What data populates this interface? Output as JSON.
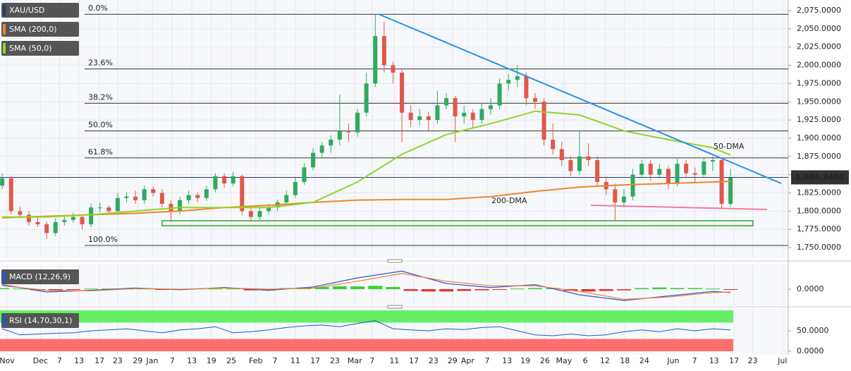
{
  "chart_data": [
    {
      "type": "candlestick",
      "title": "XAU/USD",
      "up_color": "#2faa5f",
      "down_color": "#e0584a",
      "xlim": [
        -0.5,
        177
      ],
      "ylim": [
        1736.5,
        2084.7
      ],
      "yticks": [
        {
          "value": 1750,
          "label": "1,750.0000"
        },
        {
          "value": 1775,
          "label": "1,775.0000"
        },
        {
          "value": 1800,
          "label": "1,800.0000"
        },
        {
          "value": 1825,
          "label": "1,825.0000"
        },
        {
          "value": 1850,
          "label": "1,850.0000"
        },
        {
          "value": 1875,
          "label": "1,875.0000"
        },
        {
          "value": 1900,
          "label": "1,900.0000"
        },
        {
          "value": 1925,
          "label": "1,925.0000"
        },
        {
          "value": 1950,
          "label": "1,950.0000"
        },
        {
          "value": 1975,
          "label": "1,975.0000"
        },
        {
          "value": 2000,
          "label": "2,000.0000"
        },
        {
          "value": 2025,
          "label": "2,025.0000"
        },
        {
          "value": 2050,
          "label": "2,050.0000"
        },
        {
          "value": 2075,
          "label": "2,075.0000"
        }
      ],
      "xticks": [
        {
          "value": 1.1,
          "label": "Nov"
        },
        {
          "value": 8.6,
          "label": "Dec"
        },
        {
          "value": 12.9,
          "label": "7"
        },
        {
          "value": 17.3,
          "label": "13"
        },
        {
          "value": 21.9,
          "label": "17"
        },
        {
          "value": 26,
          "label": "23"
        },
        {
          "value": 30.5,
          "label": "29"
        },
        {
          "value": 33.8,
          "label": "Jan"
        },
        {
          "value": 38.3,
          "label": "7"
        },
        {
          "value": 42.7,
          "label": "13"
        },
        {
          "value": 47.1,
          "label": "19"
        },
        {
          "value": 51.6,
          "label": "25"
        },
        {
          "value": 57.1,
          "label": "Feb"
        },
        {
          "value": 61.4,
          "label": "7"
        },
        {
          "value": 66,
          "label": "11"
        },
        {
          "value": 70.5,
          "label": "17"
        },
        {
          "value": 74.9,
          "label": "23"
        },
        {
          "value": 79.4,
          "label": "Mar"
        },
        {
          "value": 83.3,
          "label": "7"
        },
        {
          "value": 88.3,
          "label": "11"
        },
        {
          "value": 92.7,
          "label": "17"
        },
        {
          "value": 97.1,
          "label": "23"
        },
        {
          "value": 101.4,
          "label": "29"
        },
        {
          "value": 104.8,
          "label": "Apr"
        },
        {
          "value": 109.2,
          "label": "7"
        },
        {
          "value": 113.7,
          "label": "13"
        },
        {
          "value": 117.8,
          "label": "19"
        },
        {
          "value": 122.2,
          "label": "26"
        },
        {
          "value": 126.5,
          "label": "May"
        },
        {
          "value": 131.3,
          "label": "6"
        },
        {
          "value": 135.7,
          "label": "12"
        },
        {
          "value": 140.2,
          "label": "18"
        },
        {
          "value": 144.6,
          "label": "24"
        },
        {
          "value": 151.1,
          "label": "Jun"
        },
        {
          "value": 155.9,
          "label": "7"
        },
        {
          "value": 160.3,
          "label": "13"
        },
        {
          "value": 164.8,
          "label": "17"
        },
        {
          "value": 169,
          "label": "23"
        },
        {
          "value": 175.7,
          "label": "Jul"
        }
      ],
      "x": [
        0,
        2,
        4,
        6,
        8,
        10,
        12,
        14,
        16,
        18,
        20,
        22,
        24,
        26,
        28,
        30,
        32,
        34,
        36,
        38,
        40,
        42,
        44,
        46,
        48,
        50,
        52,
        54,
        56,
        58,
        60,
        62,
        64,
        66,
        68,
        70,
        72,
        74,
        76,
        78,
        80,
        82,
        84,
        86,
        88,
        90,
        92,
        94,
        96,
        98,
        100,
        102,
        104,
        106,
        108,
        110,
        112,
        114,
        116,
        118,
        120,
        122,
        124,
        126,
        128,
        130,
        132,
        134,
        136,
        138,
        140,
        142,
        144,
        146,
        148,
        150,
        152,
        154,
        156,
        158,
        160,
        162,
        164
      ],
      "candles": [
        [
          1835,
          1852,
          1830,
          1845
        ],
        [
          1845,
          1848,
          1796,
          1800
        ],
        [
          1800,
          1806,
          1790,
          1795
        ],
        [
          1795,
          1800,
          1780,
          1785
        ],
        [
          1785,
          1792,
          1778,
          1782
        ],
        [
          1782,
          1786,
          1762,
          1770
        ],
        [
          1770,
          1790,
          1766,
          1785
        ],
        [
          1785,
          1795,
          1780,
          1788
        ],
        [
          1788,
          1798,
          1784,
          1792
        ],
        [
          1792,
          1796,
          1775,
          1782
        ],
        [
          1782,
          1810,
          1778,
          1805
        ],
        [
          1805,
          1812,
          1798,
          1805
        ],
        [
          1805,
          1808,
          1795,
          1800
        ],
        [
          1800,
          1825,
          1796,
          1818
        ],
        [
          1818,
          1826,
          1812,
          1820
        ],
        [
          1820,
          1828,
          1810,
          1815
        ],
        [
          1815,
          1835,
          1810,
          1830
        ],
        [
          1830,
          1834,
          1820,
          1825
        ],
        [
          1825,
          1830,
          1805,
          1810
        ],
        [
          1810,
          1815,
          1785,
          1800
        ],
        [
          1800,
          1820,
          1795,
          1815
        ],
        [
          1815,
          1828,
          1810,
          1822
        ],
        [
          1822,
          1826,
          1812,
          1818
        ],
        [
          1818,
          1835,
          1814,
          1830
        ],
        [
          1830,
          1852,
          1826,
          1848
        ],
        [
          1848,
          1852,
          1832,
          1838
        ],
        [
          1838,
          1854,
          1834,
          1848
        ],
        [
          1848,
          1850,
          1795,
          1800
        ],
        [
          1800,
          1805,
          1786,
          1792
        ],
        [
          1792,
          1806,
          1788,
          1800
        ],
        [
          1800,
          1810,
          1795,
          1805
        ],
        [
          1805,
          1816,
          1800,
          1812
        ],
        [
          1812,
          1828,
          1808,
          1822
        ],
        [
          1822,
          1846,
          1818,
          1840
        ],
        [
          1840,
          1866,
          1836,
          1860
        ],
        [
          1860,
          1886,
          1856,
          1880
        ],
        [
          1880,
          1895,
          1874,
          1890
        ],
        [
          1890,
          1904,
          1880,
          1898
        ],
        [
          1898,
          1960,
          1890,
          1910
        ],
        [
          1910,
          1920,
          1895,
          1908
        ],
        [
          1908,
          1940,
          1902,
          1935
        ],
        [
          1935,
          1990,
          1930,
          1975
        ],
        [
          1975,
          2070,
          1970,
          2040
        ],
        [
          2040,
          2060,
          1990,
          2000
        ],
        [
          2000,
          2005,
          1975,
          1990
        ],
        [
          1990,
          1995,
          1895,
          1935
        ],
        [
          1935,
          1945,
          1915,
          1925
        ],
        [
          1925,
          1940,
          1918,
          1930
        ],
        [
          1930,
          1936,
          1910,
          1925
        ],
        [
          1925,
          1965,
          1920,
          1945
        ],
        [
          1945,
          1962,
          1940,
          1955
        ],
        [
          1955,
          1958,
          1895,
          1930
        ],
        [
          1930,
          1945,
          1920,
          1935
        ],
        [
          1935,
          1940,
          1915,
          1925
        ],
        [
          1925,
          1948,
          1920,
          1940
        ],
        [
          1940,
          1955,
          1932,
          1945
        ],
        [
          1945,
          1982,
          1940,
          1975
        ],
        [
          1975,
          1988,
          1965,
          1980
        ],
        [
          1980,
          2000,
          1970,
          1985
        ],
        [
          1985,
          1990,
          1945,
          1955
        ],
        [
          1955,
          1962,
          1940,
          1950
        ],
        [
          1950,
          1955,
          1890,
          1898
        ],
        [
          1898,
          1920,
          1878,
          1885
        ],
        [
          1885,
          1895,
          1862,
          1870
        ],
        [
          1870,
          1875,
          1848,
          1855
        ],
        [
          1855,
          1910,
          1850,
          1875
        ],
        [
          1875,
          1893,
          1862,
          1870
        ],
        [
          1870,
          1875,
          1835,
          1840
        ],
        [
          1840,
          1848,
          1822,
          1830
        ],
        [
          1830,
          1838,
          1787,
          1812
        ],
        [
          1812,
          1830,
          1805,
          1820
        ],
        [
          1820,
          1858,
          1815,
          1850
        ],
        [
          1850,
          1870,
          1845,
          1865
        ],
        [
          1865,
          1870,
          1842,
          1850
        ],
        [
          1850,
          1865,
          1845,
          1858
        ],
        [
          1858,
          1862,
          1830,
          1838
        ],
        [
          1838,
          1872,
          1834,
          1865
        ],
        [
          1865,
          1870,
          1845,
          1852
        ],
        [
          1852,
          1860,
          1840,
          1850
        ],
        [
          1850,
          1874,
          1846,
          1868
        ],
        [
          1868,
          1875,
          1855,
          1870
        ],
        [
          1870,
          1872,
          1805,
          1810
        ],
        [
          1810,
          1858,
          1806,
          1846
        ]
      ],
      "series": [
        {
          "name": "SMA (200,0)",
          "annotation": "200-DMA",
          "color": "#f0852d",
          "x": [
            0,
            10,
            20,
            30,
            40,
            50,
            60,
            70,
            80,
            90,
            100,
            110,
            120,
            130,
            140,
            150,
            160,
            164
          ],
          "values": [
            1791,
            1793,
            1795,
            1797,
            1800,
            1805,
            1808,
            1812,
            1815,
            1816,
            1816,
            1820,
            1827,
            1833,
            1836,
            1838,
            1840,
            1841
          ]
        },
        {
          "name": "SMA (50,0)",
          "annotation": "50-DMA",
          "color": "#8ed62a",
          "x": [
            0,
            10,
            20,
            30,
            40,
            50,
            60,
            70,
            80,
            90,
            100,
            110,
            120,
            130,
            140,
            150,
            160,
            164
          ],
          "values": [
            1792,
            1792,
            1795,
            1800,
            1805,
            1805,
            1805,
            1812,
            1840,
            1878,
            1905,
            1920,
            1937,
            1932,
            1910,
            1898,
            1887,
            1877
          ]
        }
      ],
      "fib_levels": [
        {
          "label": "0.0%",
          "value": 2070
        },
        {
          "label": "23.6%",
          "value": 1995
        },
        {
          "label": "38.2%",
          "value": 1948
        },
        {
          "label": "50.0%",
          "value": 1910
        },
        {
          "label": "61.8%",
          "value": 1873
        },
        {
          "label": "100.0%",
          "value": 1753
        }
      ],
      "last_price": {
        "value": 1846.34,
        "label": "1,846.3400"
      }
    },
    {
      "type": "macd",
      "title": "MACD (12,26,9)",
      "xlim": [
        -0.5,
        177
      ],
      "ylim": [
        -25,
        40
      ],
      "yticks": [
        {
          "value": 0,
          "label": "0.0000"
        }
      ],
      "histogram": {
        "up_color": "#22cc22",
        "down_color": "#ee1111",
        "x": [
          0,
          4,
          8,
          12,
          16,
          20,
          24,
          28,
          32,
          36,
          40,
          44,
          48,
          52,
          56,
          60,
          64,
          68,
          72,
          76,
          80,
          84,
          88,
          92,
          96,
          100,
          104,
          108,
          112,
          116,
          120,
          124,
          128,
          132,
          136,
          140,
          144,
          148,
          152,
          156,
          160,
          164
        ],
        "values": [
          2,
          1,
          -2,
          -3,
          -1,
          1,
          1,
          1,
          1,
          -1,
          -1,
          1,
          1,
          1,
          -2,
          -2,
          2,
          3,
          4,
          5,
          5,
          6,
          4,
          -3,
          -4,
          -4,
          -3,
          -2,
          -1,
          1,
          2,
          2,
          -3,
          -4,
          -3,
          -2,
          2,
          3,
          2,
          2,
          1,
          -1
        ]
      },
      "lines": [
        {
          "color": "#2e55d0",
          "x": [
            0,
            10,
            20,
            30,
            40,
            50,
            60,
            70,
            80,
            90,
            100,
            110,
            120,
            130,
            140,
            150,
            160,
            164
          ],
          "values": [
            8,
            -5,
            -2,
            2,
            -1,
            3,
            -2,
            4,
            20,
            32,
            10,
            3,
            8,
            -10,
            -20,
            -12,
            -4,
            -6
          ]
        },
        {
          "color": "#f08030",
          "x": [
            0,
            10,
            20,
            30,
            40,
            50,
            60,
            70,
            80,
            90,
            100,
            110,
            120,
            130,
            140,
            150,
            160,
            164
          ],
          "values": [
            6,
            -2,
            -3,
            1,
            0,
            2,
            0,
            2,
            14,
            28,
            14,
            6,
            6,
            -4,
            -18,
            -14,
            -6,
            -5
          ]
        }
      ]
    },
    {
      "type": "rsi",
      "title": "RSI (14,70,30,1)",
      "xlim": [
        -0.5,
        177
      ],
      "ylim": [
        0,
        100
      ],
      "yticks": [
        {
          "value": 50,
          "label": "50.0000"
        },
        {
          "value": 0,
          "label": "0.0000"
        }
      ],
      "upper_band": 70,
      "lower_band": 30,
      "upper_color": "#66ee66",
      "lower_color": "#ff6e6e",
      "color": "#2255cc",
      "x": [
        0,
        4,
        8,
        12,
        16,
        20,
        24,
        28,
        32,
        36,
        40,
        44,
        48,
        52,
        56,
        60,
        64,
        68,
        72,
        76,
        80,
        84,
        88,
        92,
        96,
        100,
        104,
        108,
        112,
        116,
        120,
        124,
        128,
        132,
        136,
        140,
        144,
        148,
        152,
        156,
        160,
        164
      ],
      "values": [
        55,
        40,
        42,
        44,
        45,
        50,
        52,
        55,
        50,
        45,
        52,
        55,
        60,
        45,
        48,
        52,
        58,
        62,
        64,
        60,
        68,
        75,
        55,
        52,
        50,
        55,
        53,
        58,
        60,
        50,
        40,
        38,
        42,
        38,
        40,
        48,
        52,
        48,
        55,
        50,
        55,
        52
      ]
    }
  ]
}
